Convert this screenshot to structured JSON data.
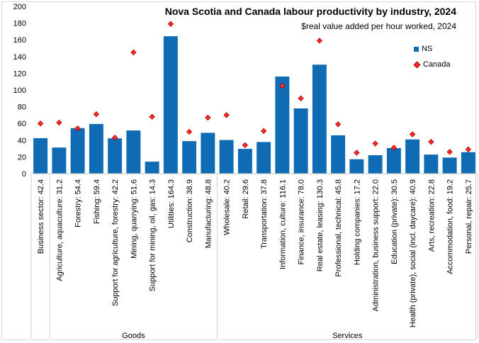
{
  "chart_data": {
    "type": "bar",
    "title": "Nova Scotia and Canada labour productivity by industry, 2024",
    "subtitle": "$real value added per hour worked, 2024",
    "xlabel": "",
    "ylabel": "",
    "ylim": [
      0,
      200
    ],
    "yticks": [
      0,
      20,
      40,
      60,
      80,
      100,
      120,
      140,
      160,
      180,
      200
    ],
    "grid": false,
    "legend_position": "top-right",
    "categories": [
      "Business sector: 42.4",
      "Agriculture, aquaculture: 31.2",
      "Forestry: 54.4",
      "Fishing: 59.4",
      "Support for agriculture, forestry: 42.2",
      "Mining, quarrying: 51.6",
      "Support for mining, oil, gas: 14.3",
      "Utilities: 164.3",
      "Construction: 38.9",
      "Manufacturing: 48.8",
      "Wholesale: 40.2",
      "Retail: 29.6",
      "Transportation: 37.8",
      "Information, culture: 116.1",
      "Finance, insurance: 78.0",
      "Real estate, leasing: 130.3",
      "Professional, technical: 45.8",
      "Holding companies: 17.2",
      "Administration, business support: 22.0",
      "Education (private): 30.5",
      "Health (private), social (incl. daycare): 40.9",
      "Arts, recreation: 22.8",
      "Accommodation, food: 19.2",
      "Personal, repair: 25.7"
    ],
    "groups": [
      {
        "name": "Goods",
        "start": 1,
        "end": 9
      },
      {
        "name": "Services",
        "start": 10,
        "end": 23
      }
    ],
    "series": [
      {
        "name": "NS",
        "kind": "bar",
        "color": "#0F6CB4",
        "values": [
          42.4,
          31.2,
          54.4,
          59.4,
          42.2,
          51.6,
          14.3,
          164.3,
          38.9,
          48.8,
          40.2,
          29.6,
          37.8,
          116.1,
          78.0,
          130.3,
          45.8,
          17.2,
          22.0,
          30.5,
          40.9,
          22.8,
          19.2,
          25.7
        ]
      },
      {
        "name": "Canada",
        "kind": "marker",
        "color": "#ff2a2a",
        "values": [
          60,
          61,
          54,
          71,
          43,
          145,
          68,
          179,
          50,
          67,
          70,
          34,
          51,
          105,
          90,
          159,
          59,
          25,
          36,
          31,
          47,
          38,
          26,
          29
        ]
      }
    ]
  }
}
